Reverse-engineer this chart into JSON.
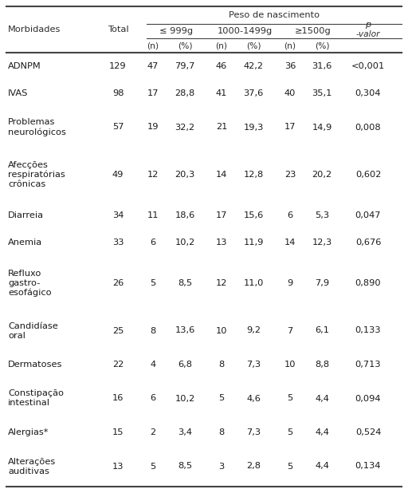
{
  "col_groups": [
    "≤ 999g",
    "1000-1499g",
    "≥1500g"
  ],
  "rows": [
    {
      "label": "ADNPM",
      "total": "129",
      "n1": "47",
      "p1": "79,7",
      "n2": "46",
      "p2": "42,2",
      "n3": "36",
      "p3": "31,6",
      "pval": "<0,001"
    },
    {
      "label": "IVAS",
      "total": "98",
      "n1": "17",
      "p1": "28,8",
      "n2": "41",
      "p2": "37,6",
      "n3": "40",
      "p3": "35,1",
      "pval": "0,304"
    },
    {
      "label": "Problemas\nneurológicos",
      "total": "57",
      "n1": "19",
      "p1": "32,2",
      "n2": "21",
      "p2": "19,3",
      "n3": "17",
      "p3": "14,9",
      "pval": "0,008"
    },
    {
      "label": "Afecções\nrespiratórias\ncrônicas",
      "total": "49",
      "n1": "12",
      "p1": "20,3",
      "n2": "14",
      "p2": "12,8",
      "n3": "23",
      "p3": "20,2",
      "pval": "0,602"
    },
    {
      "label": "Diarreia",
      "total": "34",
      "n1": "11",
      "p1": "18,6",
      "n2": "17",
      "p2": "15,6",
      "n3": "6",
      "p3": "5,3",
      "pval": "0,047"
    },
    {
      "label": "Anemia",
      "total": "33",
      "n1": "6",
      "p1": "10,2",
      "n2": "13",
      "p2": "11,9",
      "n3": "14",
      "p3": "12,3",
      "pval": "0,676"
    },
    {
      "label": "Refluxo\ngastro-\nesofágico",
      "total": "26",
      "n1": "5",
      "p1": "8,5",
      "n2": "12",
      "p2": "11,0",
      "n3": "9",
      "p3": "7,9",
      "pval": "0,890"
    },
    {
      "label": "Candidíase\noral",
      "total": "25",
      "n1": "8",
      "p1": "13,6",
      "n2": "10",
      "p2": "9,2",
      "n3": "7",
      "p3": "6,1",
      "pval": "0,133"
    },
    {
      "label": "Dermatoses",
      "total": "22",
      "n1": "4",
      "p1": "6,8",
      "n2": "8",
      "p2": "7,3",
      "n3": "10",
      "p3": "8,8",
      "pval": "0,713"
    },
    {
      "label": "Constipação\nintestinal",
      "total": "16",
      "n1": "6",
      "p1": "10,2",
      "n2": "5",
      "p2": "4,6",
      "n3": "5",
      "p3": "4,4",
      "pval": "0,094"
    },
    {
      "label": "Alergias*",
      "total": "15",
      "n1": "2",
      "p1": "3,4",
      "n2": "8",
      "p2": "7,3",
      "n3": "5",
      "p3": "4,4",
      "pval": "0,524"
    },
    {
      "label": "Alterações\nauditivas",
      "total": "13",
      "n1": "5",
      "p1": "8,5",
      "n2": "3",
      "p2": "2,8",
      "n3": "5",
      "p3": "4,4",
      "pval": "0,134"
    }
  ],
  "bg_color": "#ffffff",
  "text_color": "#1a1a1a",
  "header_color": "#2e2e2e",
  "line_color": "#444444",
  "font_size": 8.2,
  "header_font_size": 8.2
}
